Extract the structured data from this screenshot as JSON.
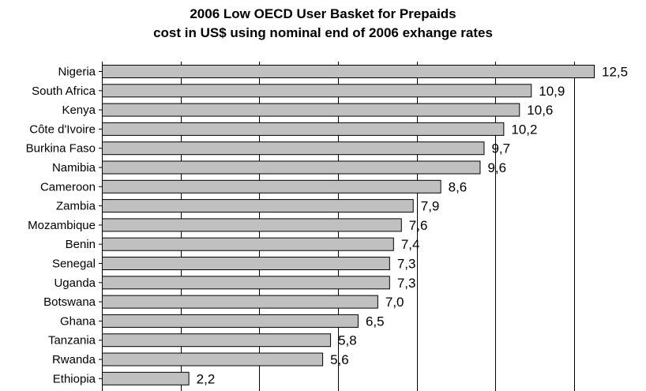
{
  "chart_data": {
    "type": "bar",
    "orientation": "horizontal",
    "title": "2006 Low OECD User Basket for Prepaids",
    "subtitle": "cost in US$ using nominal end of 2006 exhange rates",
    "categories": [
      "Nigeria",
      "South Africa",
      "Kenya",
      "Côte d'Ivoire",
      "Burkina Faso",
      "Namibia",
      "Cameroon",
      "Zambia",
      "Mozambique",
      "Benin",
      "Senegal",
      "Uganda",
      "Botswana",
      "Ghana",
      "Tanzania",
      "Rwanda",
      "Ethiopia"
    ],
    "values": [
      12.5,
      10.9,
      10.6,
      10.2,
      9.7,
      9.6,
      8.6,
      7.9,
      7.6,
      7.4,
      7.3,
      7.3,
      7.0,
      6.5,
      5.8,
      5.6,
      2.2
    ],
    "value_labels": [
      "12,5",
      "10,9",
      "10,6",
      "10,2",
      "9,7",
      "9,6",
      "8,6",
      "7,9",
      "7,6",
      "7,4",
      "7,3",
      "7,3",
      "7,0",
      "6,5",
      "5,8",
      "5,6",
      "2,2"
    ],
    "xlim": [
      0,
      12.5
    ],
    "gridlines": [
      2,
      4,
      6,
      8,
      10,
      12
    ],
    "grid": true,
    "legend": "none",
    "bar_color": "#c0c0c0",
    "bar_border_color": "#000000",
    "gridline_color": "#000000"
  }
}
